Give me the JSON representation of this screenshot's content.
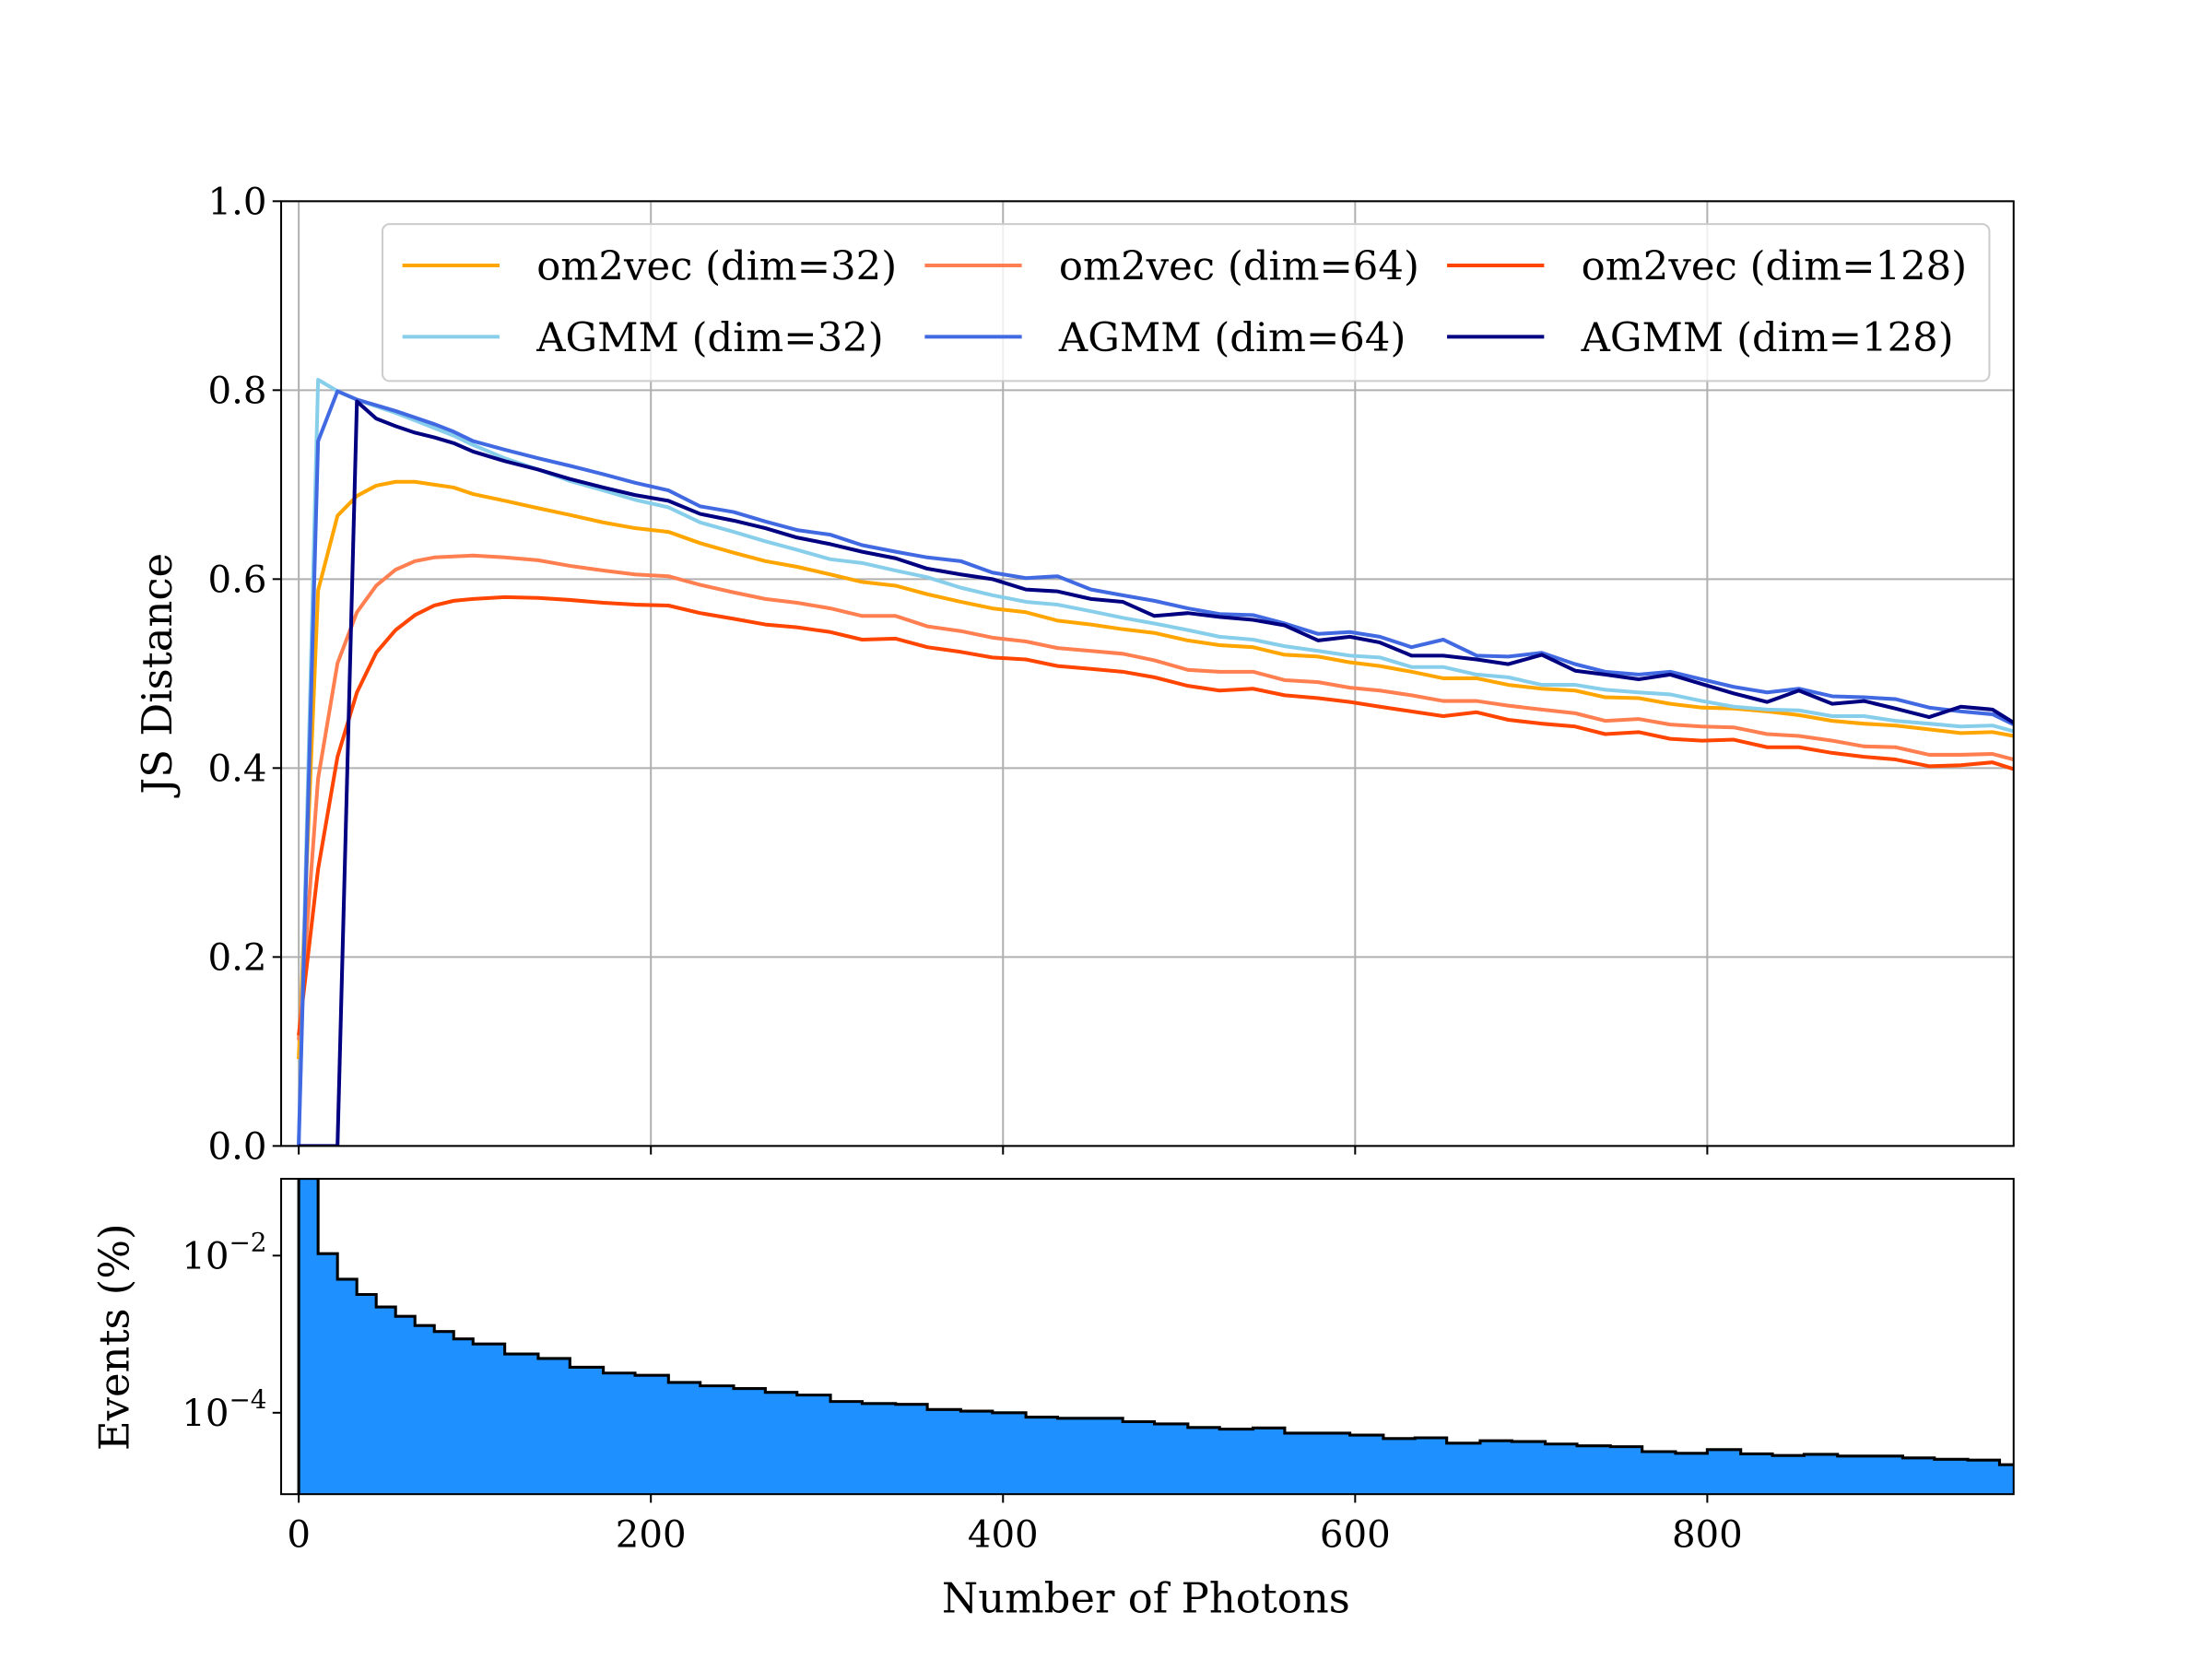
{
  "chart_data": [
    {
      "type": "line",
      "ylabel": "JS Distance",
      "xlim": [
        -10,
        974
      ],
      "ylim": [
        0,
        1
      ],
      "grid": true,
      "legend_placement": "top-right",
      "legend_columns": 3,
      "xticks": [
        0,
        200,
        400,
        600,
        800
      ],
      "yticks": [
        0.0,
        0.2,
        0.4,
        0.6,
        0.8,
        1.0
      ],
      "ytick_labels": [
        "0.0",
        "0.2",
        "0.4",
        "0.6",
        "0.8",
        "1.0"
      ],
      "x": [
        0,
        11,
        22,
        33,
        44,
        55,
        66,
        77,
        88,
        99,
        117,
        136,
        154,
        173,
        191,
        210,
        228,
        247,
        265,
        283,
        302,
        320,
        339,
        357,
        376,
        394,
        413,
        431,
        450,
        468,
        486,
        505,
        523,
        542,
        560,
        579,
        597,
        614,
        632,
        650,
        669,
        687,
        706,
        725,
        742,
        761,
        779,
        797,
        815,
        834,
        852,
        871,
        889,
        907,
        926,
        944,
        962,
        974
      ],
      "series": [
        {
          "name": "om2vec (dim=32)",
          "color": "#ffa500",
          "values": [
            0.092,
            0.588,
            0.667,
            0.688,
            0.699,
            0.703,
            0.703,
            0.7,
            0.697,
            0.69,
            0.683,
            0.675,
            0.668,
            0.66,
            0.654,
            0.65,
            0.638,
            0.628,
            0.619,
            0.613,
            0.605,
            0.597,
            0.593,
            0.584,
            0.576,
            0.569,
            0.565,
            0.556,
            0.552,
            0.547,
            0.543,
            0.535,
            0.53,
            0.528,
            0.52,
            0.518,
            0.512,
            0.508,
            0.502,
            0.495,
            0.495,
            0.488,
            0.484,
            0.482,
            0.475,
            0.474,
            0.468,
            0.464,
            0.463,
            0.46,
            0.456,
            0.45,
            0.447,
            0.445,
            0.441,
            0.437,
            0.438,
            0.434
          ]
        },
        {
          "name": "om2vec (dim=64)",
          "color": "#ff7f50",
          "values": [
            0.112,
            0.389,
            0.511,
            0.565,
            0.593,
            0.61,
            0.619,
            0.623,
            0.624,
            0.625,
            0.623,
            0.62,
            0.614,
            0.609,
            0.605,
            0.603,
            0.594,
            0.586,
            0.579,
            0.575,
            0.569,
            0.561,
            0.561,
            0.55,
            0.545,
            0.538,
            0.534,
            0.527,
            0.524,
            0.521,
            0.514,
            0.504,
            0.502,
            0.502,
            0.493,
            0.491,
            0.485,
            0.482,
            0.477,
            0.471,
            0.471,
            0.466,
            0.462,
            0.458,
            0.45,
            0.452,
            0.446,
            0.444,
            0.443,
            0.436,
            0.434,
            0.429,
            0.423,
            0.422,
            0.414,
            0.414,
            0.415,
            0.409
          ]
        },
        {
          "name": "om2vec (dim=128)",
          "color": "#ff4500",
          "values": [
            0.117,
            0.293,
            0.412,
            0.48,
            0.522,
            0.546,
            0.562,
            0.572,
            0.577,
            0.579,
            0.581,
            0.58,
            0.578,
            0.575,
            0.573,
            0.572,
            0.564,
            0.558,
            0.552,
            0.549,
            0.544,
            0.536,
            0.537,
            0.528,
            0.523,
            0.517,
            0.515,
            0.508,
            0.505,
            0.502,
            0.496,
            0.487,
            0.482,
            0.484,
            0.477,
            0.474,
            0.47,
            0.465,
            0.46,
            0.455,
            0.459,
            0.451,
            0.447,
            0.444,
            0.436,
            0.438,
            0.431,
            0.429,
            0.43,
            0.422,
            0.422,
            0.416,
            0.412,
            0.409,
            0.402,
            0.403,
            0.406,
            0.399
          ]
        },
        {
          "name": "AGMM (dim=32)",
          "color": "#87ceeb",
          "values": [
            0,
            0.811,
            0.799,
            0.79,
            0.783,
            0.776,
            0.768,
            0.76,
            0.752,
            0.742,
            0.728,
            0.716,
            0.704,
            0.694,
            0.684,
            0.676,
            0.66,
            0.65,
            0.64,
            0.631,
            0.621,
            0.617,
            0.609,
            0.602,
            0.591,
            0.583,
            0.576,
            0.573,
            0.566,
            0.559,
            0.553,
            0.546,
            0.539,
            0.536,
            0.529,
            0.524,
            0.519,
            0.517,
            0.507,
            0.507,
            0.499,
            0.496,
            0.488,
            0.488,
            0.483,
            0.48,
            0.478,
            0.471,
            0.465,
            0.462,
            0.461,
            0.455,
            0.455,
            0.45,
            0.447,
            0.444,
            0.445,
            0.439
          ]
        },
        {
          "name": "AGMM (dim=64)",
          "color": "#4169e1",
          "values": [
            0,
            0.746,
            0.799,
            0.79,
            0.784,
            0.778,
            0.771,
            0.764,
            0.756,
            0.746,
            0.737,
            0.728,
            0.72,
            0.711,
            0.702,
            0.694,
            0.677,
            0.671,
            0.661,
            0.652,
            0.647,
            0.636,
            0.629,
            0.623,
            0.619,
            0.607,
            0.601,
            0.603,
            0.589,
            0.583,
            0.577,
            0.569,
            0.563,
            0.562,
            0.553,
            0.542,
            0.544,
            0.539,
            0.528,
            0.536,
            0.519,
            0.518,
            0.522,
            0.51,
            0.502,
            0.499,
            0.502,
            0.494,
            0.486,
            0.48,
            0.484,
            0.476,
            0.475,
            0.473,
            0.464,
            0.46,
            0.457,
            0.446
          ]
        },
        {
          "name": "AGMM (dim=128)",
          "color": "#000080",
          "values": [
            0,
            0,
            0,
            0.788,
            0.77,
            0.762,
            0.755,
            0.75,
            0.744,
            0.735,
            0.725,
            0.716,
            0.706,
            0.697,
            0.689,
            0.683,
            0.669,
            0.662,
            0.654,
            0.644,
            0.637,
            0.629,
            0.622,
            0.611,
            0.605,
            0.6,
            0.589,
            0.587,
            0.579,
            0.576,
            0.561,
            0.564,
            0.56,
            0.557,
            0.551,
            0.535,
            0.539,
            0.533,
            0.519,
            0.519,
            0.515,
            0.51,
            0.52,
            0.503,
            0.499,
            0.494,
            0.499,
            0.489,
            0.479,
            0.47,
            0.482,
            0.468,
            0.471,
            0.463,
            0.454,
            0.465,
            0.462,
            0.448
          ]
        }
      ]
    },
    {
      "type": "histogram",
      "xlabel": "Number of Photons",
      "ylabel": "Events (%)",
      "xlim": [
        -10,
        974
      ],
      "ylim": [
        9.2e-06,
        0.095
      ],
      "yscale": "log",
      "grid": false,
      "fill_color": "#1e90ff",
      "edge_color": "#000000",
      "xticks": [
        0,
        200,
        400,
        600,
        800
      ],
      "xtick_labels": [
        "0",
        "200",
        "400",
        "600",
        "800"
      ],
      "yticks": [
        0.01,
        0.0001
      ],
      "ytick_labels": [
        {
          "base": "10",
          "exp": "−2"
        },
        {
          "base": "10",
          "exp": "−4"
        }
      ],
      "bin_edges": [
        0,
        11,
        22,
        33,
        44,
        55,
        66,
        77,
        88,
        99,
        117,
        136,
        154,
        173,
        191,
        210,
        228,
        247,
        265,
        283,
        302,
        320,
        339,
        357,
        376,
        394,
        413,
        431,
        450,
        468,
        486,
        505,
        523,
        542,
        560,
        579,
        597,
        616,
        634,
        652,
        671,
        689,
        708,
        726,
        745,
        763,
        782,
        800,
        819,
        837,
        855,
        874,
        892,
        911,
        929,
        948,
        966,
        985
      ],
      "values": [
        0.096,
        0.0106,
        0.005,
        0.0032,
        0.00222,
        0.00169,
        0.00129,
        0.00108,
        0.00087,
        0.00075,
        0.00056,
        0.00049,
        0.00038,
        0.00032,
        0.0003,
        0.000243,
        0.00022,
        0.000203,
        0.000182,
        0.000168,
        0.000139,
        0.000131,
        0.000128,
        0.00011,
        0.000105,
        0.0001,
        8.8e-05,
        8.5e-05,
        8.5e-05,
        7.7e-05,
        7.2e-05,
        6.5e-05,
        6.2e-05,
        6.4e-05,
        5.5e-05,
        5.5e-05,
        5.2e-05,
        4.7e-05,
        4.8e-05,
        4.1e-05,
        4.4e-05,
        4.3e-05,
        4e-05,
        3.8e-05,
        3.7e-05,
        3.2e-05,
        3.05e-05,
        3.4e-05,
        3e-05,
        2.86e-05,
        2.96e-05,
        2.81e-05,
        2.81e-05,
        2.66e-05,
        2.56e-05,
        2.5e-05,
        2.18e-05
      ]
    }
  ]
}
